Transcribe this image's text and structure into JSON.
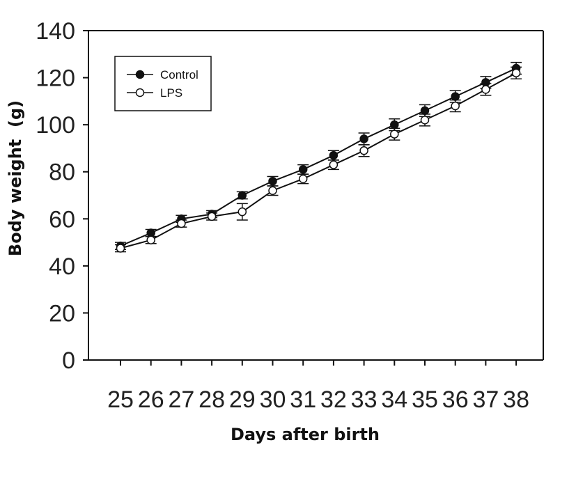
{
  "chart_data": {
    "type": "line",
    "title": "",
    "xlabel": "Days after birth",
    "ylabel": "Body weight  (g)",
    "x": [
      25,
      26,
      27,
      28,
      29,
      30,
      31,
      32,
      33,
      34,
      35,
      36,
      37,
      38
    ],
    "ylim": [
      0,
      140
    ],
    "yticks": [
      0,
      20,
      40,
      60,
      80,
      100,
      120,
      140
    ],
    "grid": false,
    "legend_position": "top-left",
    "series": [
      {
        "name": "Control",
        "marker": "filled-circle",
        "values": [
          48.5,
          54,
          60,
          62,
          70,
          76,
          81,
          87,
          94,
          100,
          106,
          112,
          118,
          124
        ],
        "errors": [
          1.5,
          1.5,
          1.5,
          1.5,
          1.5,
          2,
          2,
          2,
          2.5,
          2.5,
          2.5,
          2.5,
          2.5,
          2.5
        ]
      },
      {
        "name": "LPS",
        "marker": "open-circle",
        "values": [
          47.5,
          51,
          58,
          61,
          63,
          72,
          77,
          83,
          89,
          96,
          102,
          108,
          115,
          122
        ],
        "errors": [
          1.5,
          1.5,
          1.5,
          1.5,
          3.5,
          2,
          2,
          2,
          2.5,
          2.5,
          2.5,
          2.5,
          2.5,
          2.5
        ]
      }
    ]
  },
  "colors": {
    "line": "#111111",
    "open_fill": "#ffffff"
  }
}
